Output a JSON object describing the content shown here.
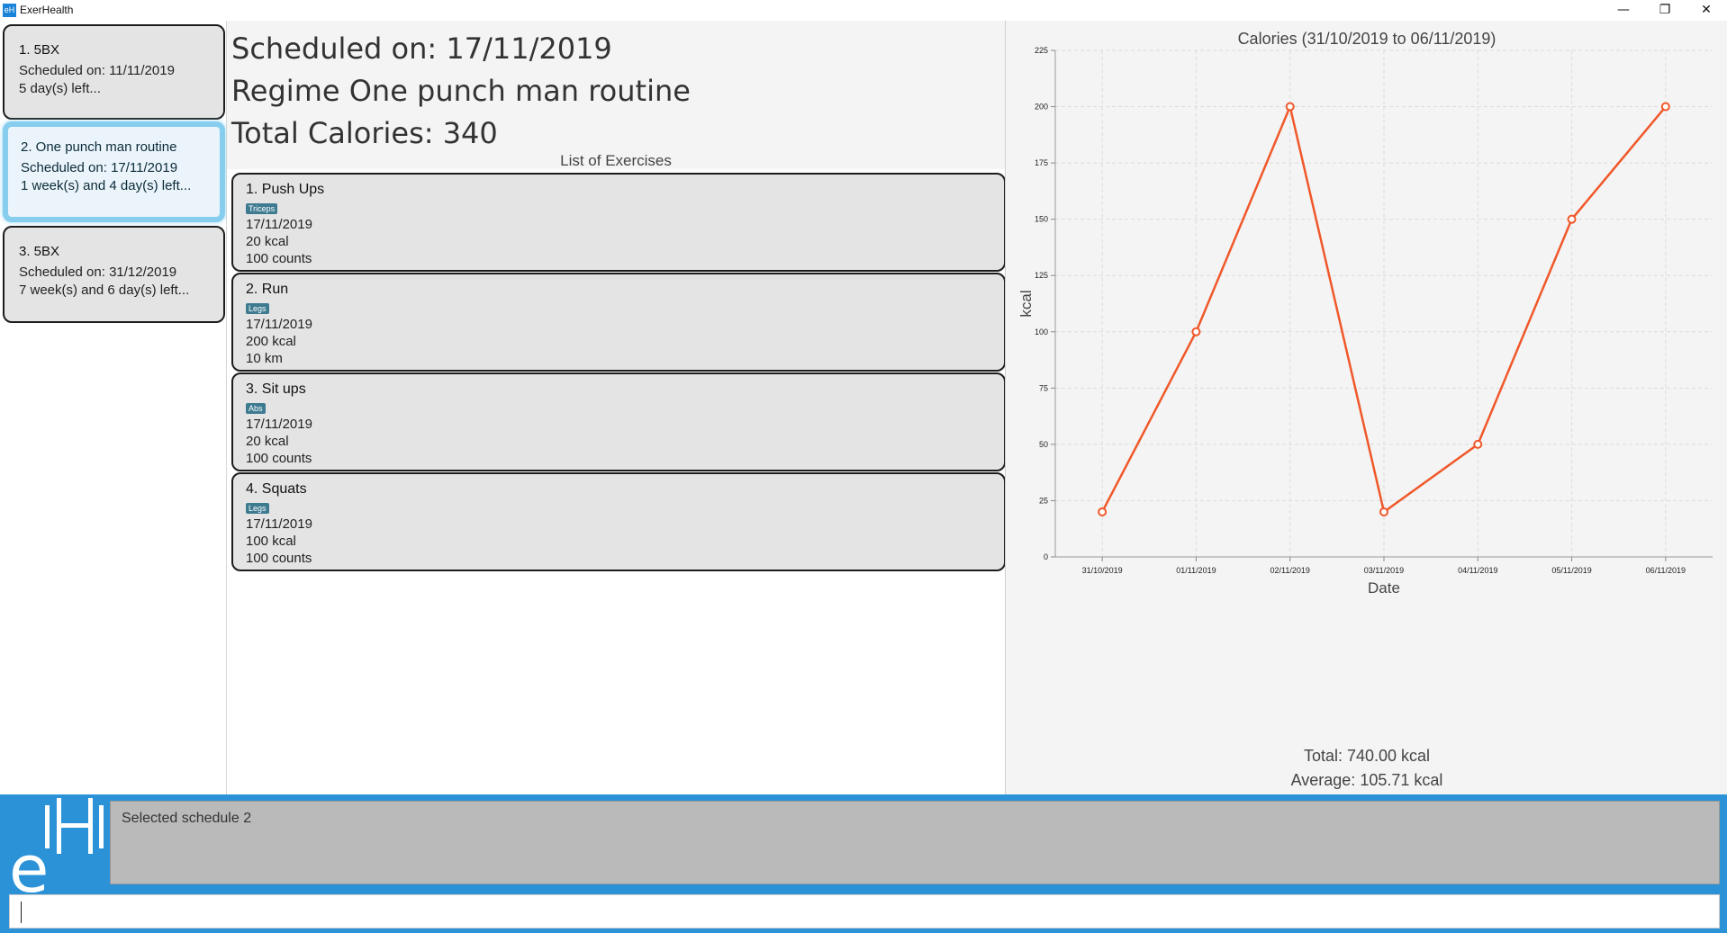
{
  "window": {
    "title": "ExerHealth",
    "icon": "eH",
    "controls": {
      "minimize": "—",
      "restore": "❐",
      "close": "✕"
    }
  },
  "schedules": [
    {
      "name": "1.  5BX",
      "scheduled": "Scheduled on: 11/11/2019",
      "remaining": "5 day(s) left..."
    },
    {
      "name": "2.  One punch man routine",
      "scheduled": "Scheduled on: 17/11/2019",
      "remaining": "1 week(s) and 4 day(s) left..."
    },
    {
      "name": "3.  5BX",
      "scheduled": "Scheduled on: 31/12/2019",
      "remaining": "7 week(s) and 6 day(s) left..."
    }
  ],
  "detail": {
    "scheduled_on": "Scheduled on: 17/11/2019",
    "regime": "Regime One punch man routine",
    "total_calories": "Total Calories: 340",
    "list_heading": "List of Exercises"
  },
  "exercises": [
    {
      "title": "1.  Push Ups",
      "tag": "Triceps",
      "date": "17/11/2019",
      "calories": "20 kcal",
      "quantity": "100 counts"
    },
    {
      "title": "2.  Run",
      "tag": "Legs",
      "date": "17/11/2019",
      "calories": "200 kcal",
      "quantity": "10 km"
    },
    {
      "title": "3.  Sit ups",
      "tag": "Abs",
      "date": "17/11/2019",
      "calories": "20 kcal",
      "quantity": "100 counts"
    },
    {
      "title": "4.  Squats",
      "tag": "Legs",
      "date": "17/11/2019",
      "calories": "100 kcal",
      "quantity": "100 counts"
    }
  ],
  "stats": {
    "total": "Total: 740.00 kcal",
    "average": "Average: 105.71 kcal"
  },
  "result": {
    "text": "Selected schedule 2"
  },
  "command": {
    "value": ""
  },
  "colors": {
    "accent": "#2b92d8",
    "line": "#f0582a",
    "selected_border": "#86cdee",
    "tag": "#3e7b91"
  },
  "chart_data": {
    "type": "line",
    "title": "Calories (31/10/2019 to 06/11/2019)",
    "xlabel": "Date",
    "ylabel": "kcal",
    "categories": [
      "31/10/2019",
      "01/11/2019",
      "02/11/2019",
      "03/11/2019",
      "04/11/2019",
      "05/11/2019",
      "06/11/2019"
    ],
    "values": [
      20,
      100,
      200,
      20,
      50,
      150,
      200
    ],
    "ylim": [
      0,
      225
    ],
    "yticks": [
      0,
      25,
      50,
      75,
      100,
      125,
      150,
      175,
      200,
      225
    ],
    "grid": true,
    "legend": "none"
  }
}
